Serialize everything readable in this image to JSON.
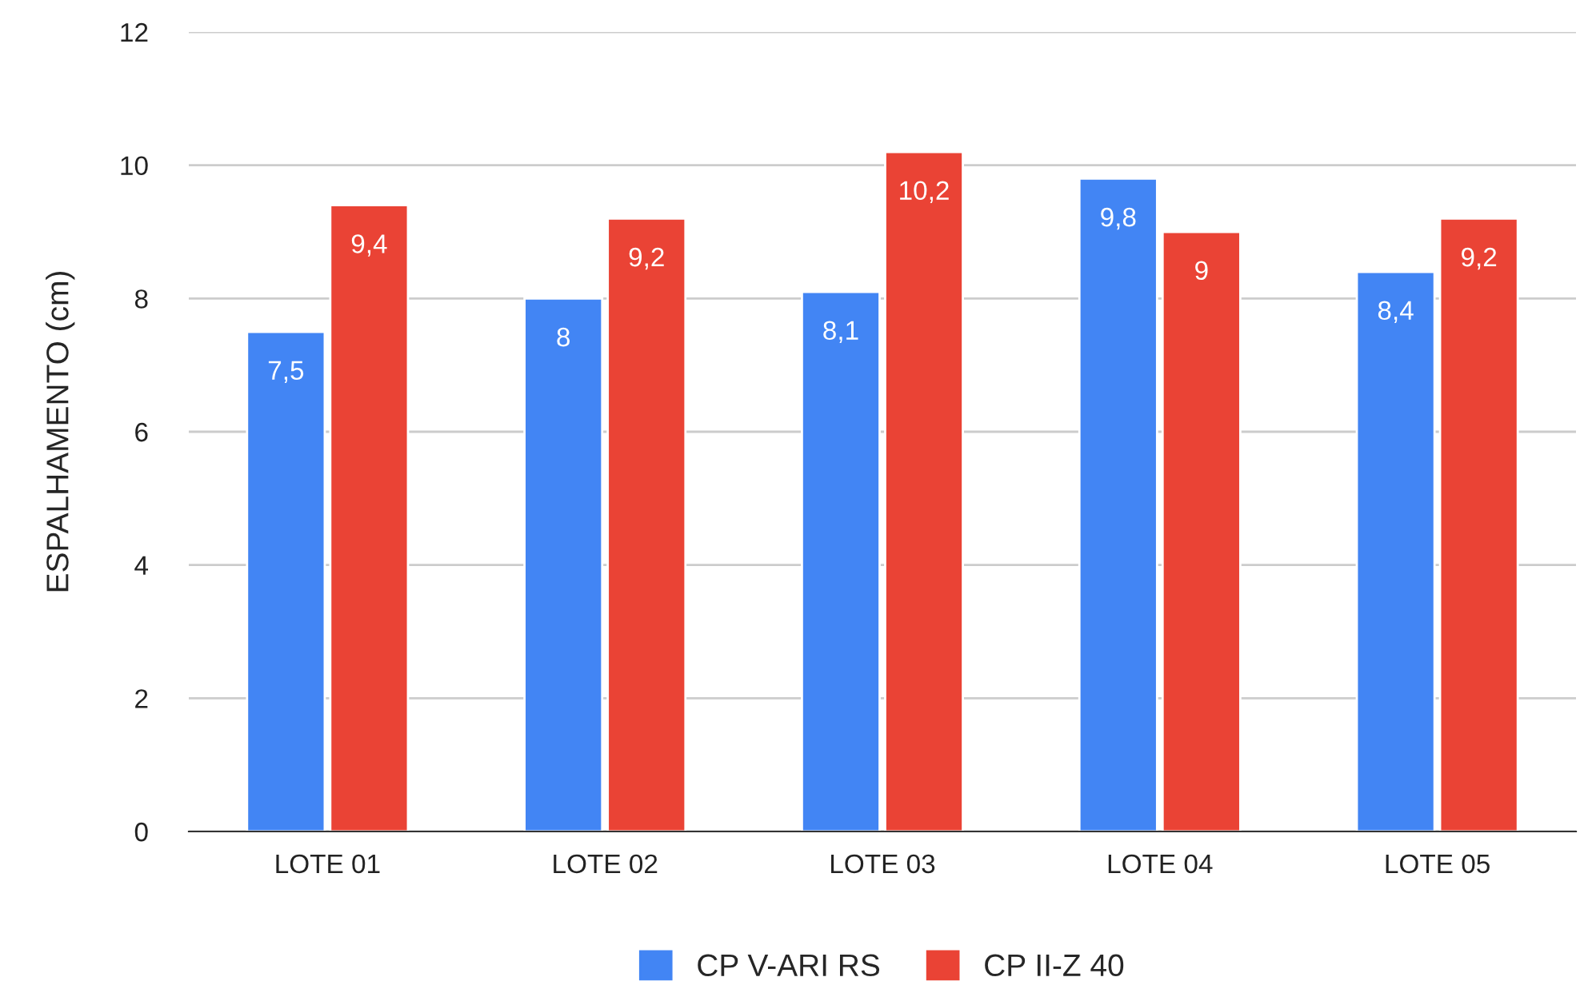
{
  "chart_data": {
    "type": "bar",
    "ylabel": "ESPALHAMENTO (cm)",
    "categories": [
      "LOTE 01",
      "LOTE 02",
      "LOTE 03",
      "LOTE 04",
      "LOTE 05"
    ],
    "series": [
      {
        "name": "CP V-ARI RS",
        "color": "#4285f4",
        "values": [
          7.5,
          8,
          8.1,
          9.8,
          8.4
        ],
        "value_labels": [
          "7,5",
          "8",
          "8,1",
          "9,8",
          "8,4"
        ]
      },
      {
        "name": "CP II-Z 40",
        "color": "#ea4335",
        "values": [
          9.4,
          9.2,
          10.2,
          9,
          9.2
        ],
        "value_labels": [
          "9,4",
          "9,2",
          "10,2",
          "9",
          "9,2"
        ]
      }
    ],
    "ylim": [
      0,
      12
    ],
    "yticks": [
      0,
      2,
      4,
      6,
      8,
      10,
      12
    ],
    "grid": "y",
    "legend": "bottom"
  }
}
